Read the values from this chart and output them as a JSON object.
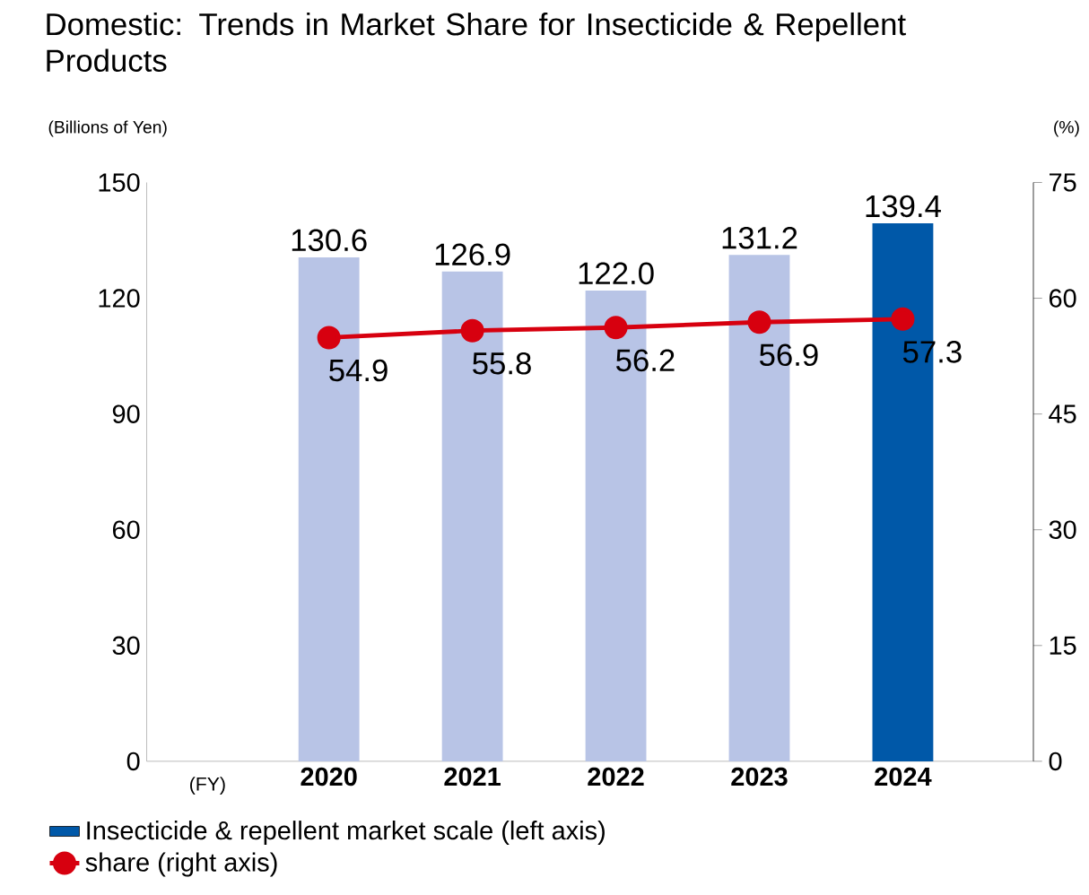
{
  "chart_data": {
    "type": "bar",
    "title": "Domestic: Trends in Market Share for Insecticide & Repellent Products",
    "xlabel": "(FY)",
    "ylabel": "(Billions of Yen)",
    "y2label": "(%)",
    "categories": [
      "2020",
      "2021",
      "2022",
      "2023",
      "2024"
    ],
    "series": [
      {
        "name": "Insecticide & repellent market scale (left axis)",
        "colors": [
          "#b8c4e6",
          "#b8c4e6",
          "#b8c4e6",
          "#b8c4e6",
          "#0058a8"
        ],
        "values": [
          130.6,
          126.9,
          122.0,
          131.2,
          139.4
        ],
        "value_labels": [
          "130.6",
          "126.9",
          "122.0",
          "131.2",
          "139.4"
        ]
      },
      {
        "name": "share (right axis)",
        "type": "line",
        "axis": "y2",
        "color": "#d7000f",
        "values": [
          54.9,
          55.8,
          56.2,
          56.9,
          57.3
        ],
        "value_labels": [
          "54.9",
          "55.8",
          "56.2",
          "56.9",
          "57.3"
        ]
      }
    ],
    "ylim": [
      0,
      150
    ],
    "yticks": [
      0,
      30,
      60,
      90,
      120,
      150
    ],
    "y2lim": [
      0,
      75
    ],
    "y2ticks": [
      0,
      15,
      30,
      45,
      60,
      75
    ],
    "legend": "bottom",
    "marker": "circle",
    "line_style": "solid"
  }
}
